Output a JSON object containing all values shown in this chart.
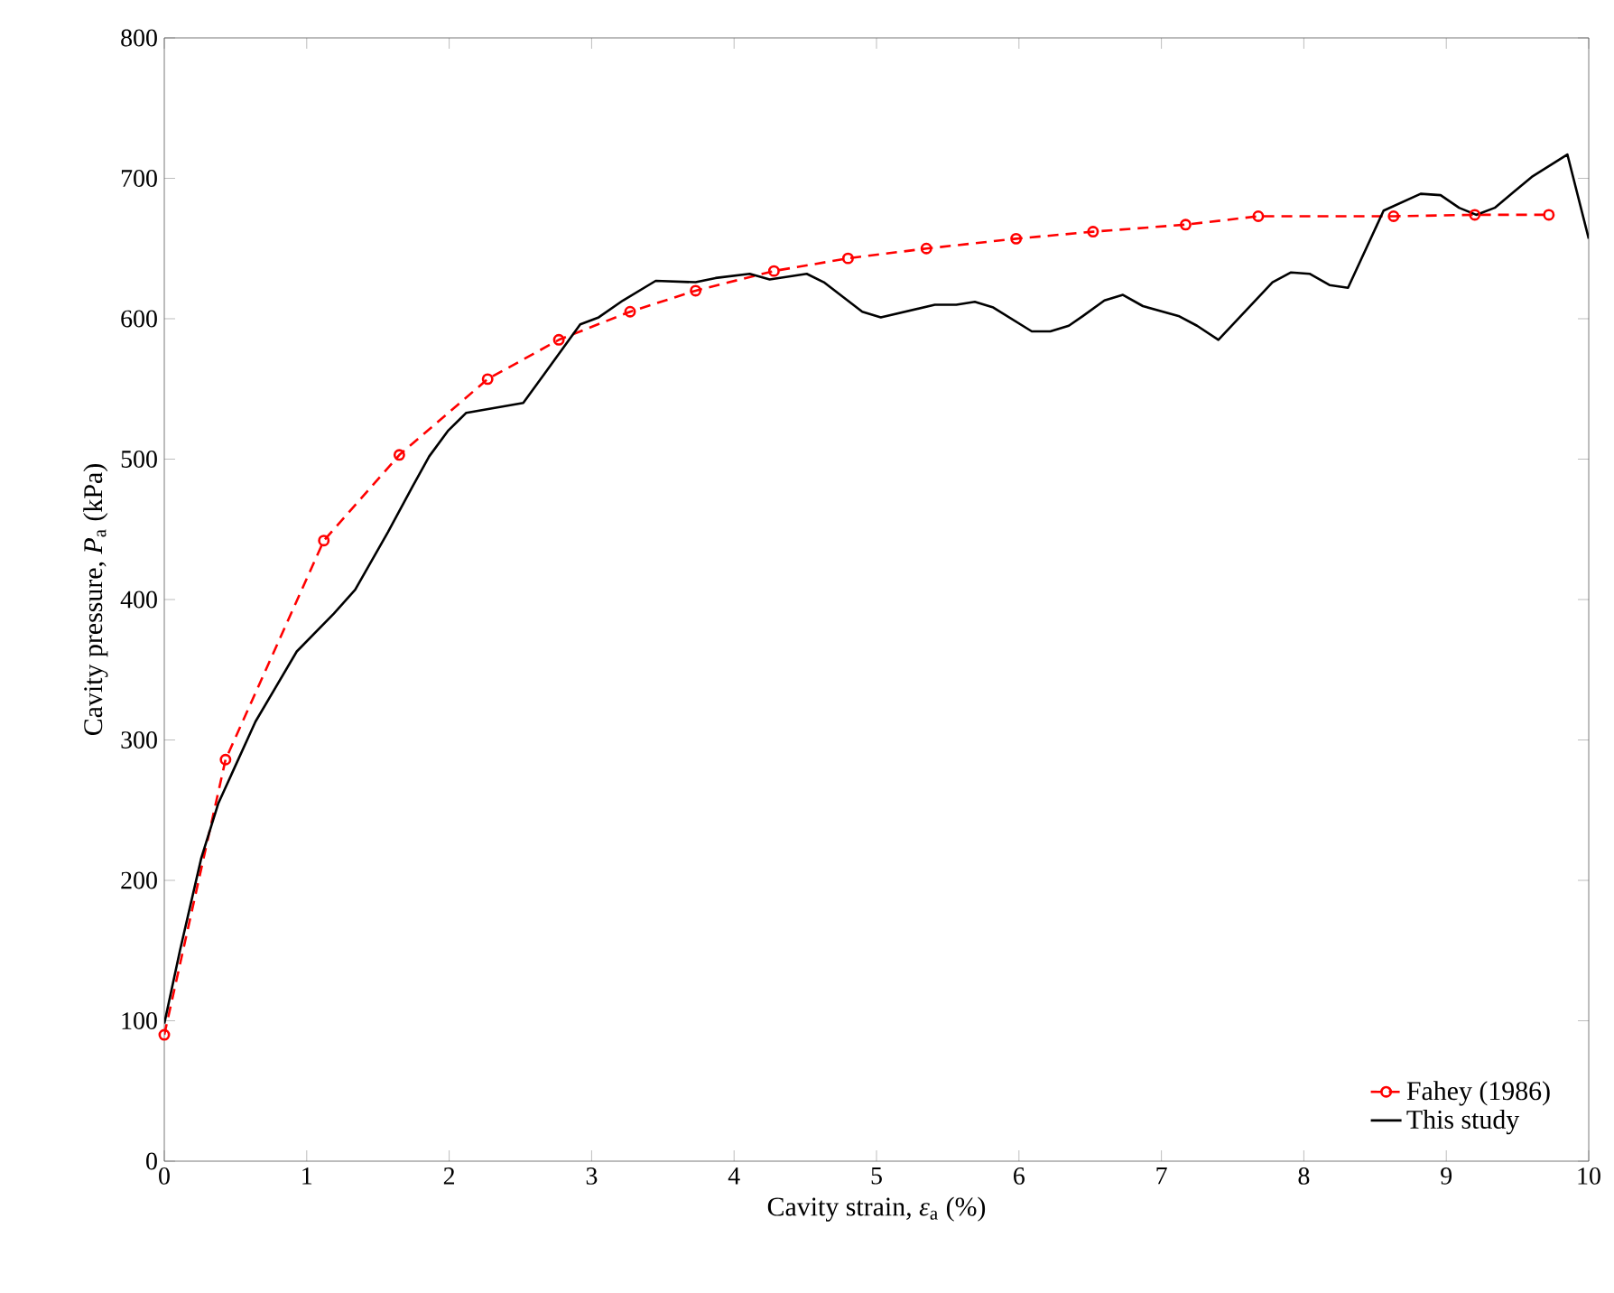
{
  "chart_data": {
    "type": "line",
    "xlabel": "Cavity strain, *ε*$_{a}$ (%)",
    "ylabel": "Cavity pressure, *P*$_{a}$ (kPa)",
    "xlim": [
      0,
      10
    ],
    "ylim": [
      0,
      800
    ],
    "xticks": [
      0,
      1,
      2,
      3,
      4,
      5,
      6,
      7,
      8,
      9,
      10
    ],
    "yticks": [
      0,
      100,
      200,
      300,
      400,
      500,
      600,
      700,
      800
    ],
    "grid": false,
    "legend": "bottom right",
    "series": [
      {
        "name": "Fahey (1986)",
        "color": "#ff0000",
        "marker": "circle",
        "line_style": "dashed",
        "x": [
          0,
          0.43,
          1.12,
          1.65,
          2.27,
          2.77,
          3.27,
          3.73,
          4.28,
          4.8,
          5.35,
          5.98,
          6.52,
          7.17,
          7.68,
          8.63,
          9.2,
          9.72
        ],
        "values": [
          90,
          286,
          442,
          503,
          557,
          585,
          605,
          620,
          634,
          643,
          650,
          657,
          662,
          667,
          673,
          673,
          674,
          674
        ]
      },
      {
        "name": "This study",
        "color": "#000000",
        "marker": "none",
        "line_style": "solid",
        "x": [
          0,
          0.11,
          0.26,
          0.38,
          0.64,
          0.93,
          1.19,
          1.34,
          1.57,
          1.74,
          1.86,
          1.99,
          2.12,
          2.52,
          2.67,
          2.92,
          3.05,
          3.22,
          3.45,
          3.73,
          3.87,
          4.11,
          4.25,
          4.51,
          4.63,
          4.9,
          5.03,
          5.41,
          5.56,
          5.69,
          5.82,
          6.09,
          6.22,
          6.35,
          6.45,
          6.6,
          6.73,
          6.87,
          7.12,
          7.25,
          7.4,
          7.78,
          7.91,
          8.04,
          8.18,
          8.31,
          8.56,
          8.82,
          8.96,
          9.09,
          9.21,
          9.34,
          9.47,
          9.6,
          9.85,
          10
        ],
        "values": [
          98,
          150,
          216,
          255,
          313,
          363,
          390,
          407,
          448,
          480,
          502,
          520,
          533,
          540,
          561,
          596,
          601,
          613,
          627,
          626,
          629,
          632,
          628,
          632,
          626,
          605,
          601,
          610,
          610,
          612,
          608,
          591,
          591,
          595,
          602,
          613,
          617,
          609,
          602,
          595,
          585,
          626,
          633,
          632,
          624,
          622,
          677,
          689,
          688,
          679,
          674,
          679,
          690,
          701,
          717,
          657
        ]
      }
    ]
  }
}
